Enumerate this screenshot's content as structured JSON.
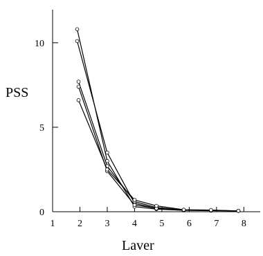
{
  "chart_data": {
    "type": "line",
    "xlabel": "Laver",
    "ylabel": "PSS",
    "x_ticks": [
      1,
      2,
      3,
      4,
      5,
      6,
      7,
      8
    ],
    "y_ticks": [
      0,
      5,
      10
    ],
    "xlim": [
      1,
      8.6
    ],
    "ylim": [
      0,
      11
    ],
    "grid": false,
    "series": [
      {
        "points": [
          [
            1.9,
            10.8
          ],
          [
            3.0,
            3.0
          ],
          [
            4.0,
            0.3
          ],
          [
            4.8,
            0.15
          ],
          [
            5.8,
            0.08
          ],
          [
            6.8,
            0.06
          ],
          [
            7.8,
            0.05
          ]
        ]
      },
      {
        "points": [
          [
            1.9,
            10.1
          ],
          [
            3.0,
            3.5
          ],
          [
            4.0,
            0.5
          ],
          [
            4.8,
            0.2
          ],
          [
            5.8,
            0.1
          ],
          [
            6.8,
            0.08
          ],
          [
            7.8,
            0.05
          ]
        ]
      },
      {
        "points": [
          [
            1.95,
            7.7
          ],
          [
            3.0,
            2.7
          ],
          [
            4.0,
            0.6
          ],
          [
            4.8,
            0.25
          ],
          [
            5.8,
            0.1
          ],
          [
            6.8,
            0.08
          ],
          [
            7.8,
            0.05
          ]
        ]
      },
      {
        "points": [
          [
            1.95,
            7.4
          ],
          [
            3.0,
            2.4
          ],
          [
            4.0,
            0.4
          ],
          [
            4.8,
            0.2
          ],
          [
            5.8,
            0.1
          ],
          [
            6.8,
            0.07
          ],
          [
            7.8,
            0.05
          ]
        ]
      },
      {
        "points": [
          [
            1.95,
            6.6
          ],
          [
            3.0,
            2.5
          ],
          [
            4.0,
            0.7
          ],
          [
            4.8,
            0.35
          ],
          [
            5.8,
            0.12
          ],
          [
            6.8,
            0.1
          ],
          [
            7.8,
            0.05
          ]
        ]
      }
    ]
  }
}
